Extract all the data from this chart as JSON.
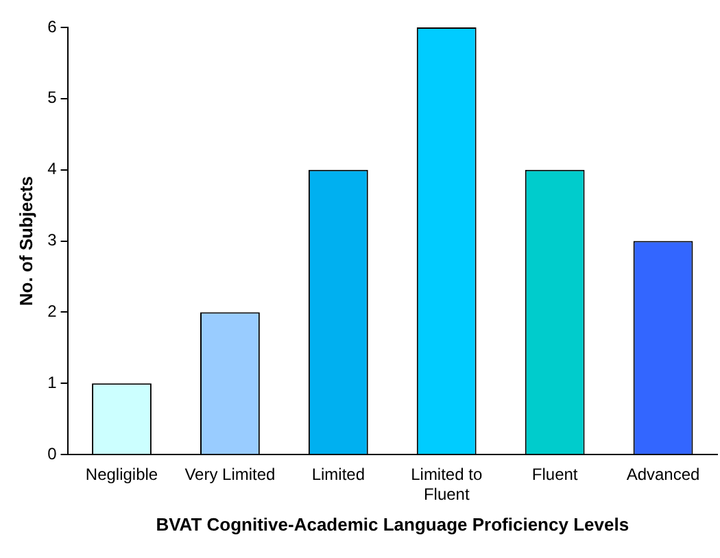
{
  "chart_data": {
    "type": "bar",
    "xlabel": "BVAT Cognitive-Academic Language Proficiency Levels",
    "ylabel": "No. of Subjects",
    "categories": [
      "Negligible",
      "Very Limited",
      "Limited",
      "Limited to Fluent",
      "Fluent",
      "Advanced"
    ],
    "values": [
      1,
      2,
      4,
      6,
      4,
      3
    ],
    "colors": [
      "#ccffff",
      "#99ccff",
      "#00b0f0",
      "#00ccff",
      "#00cccc",
      "#3366ff"
    ],
    "ylim": [
      0,
      6
    ],
    "yticks": [
      0,
      1,
      2,
      3,
      4,
      5,
      6
    ],
    "grid": false,
    "legend": false
  }
}
